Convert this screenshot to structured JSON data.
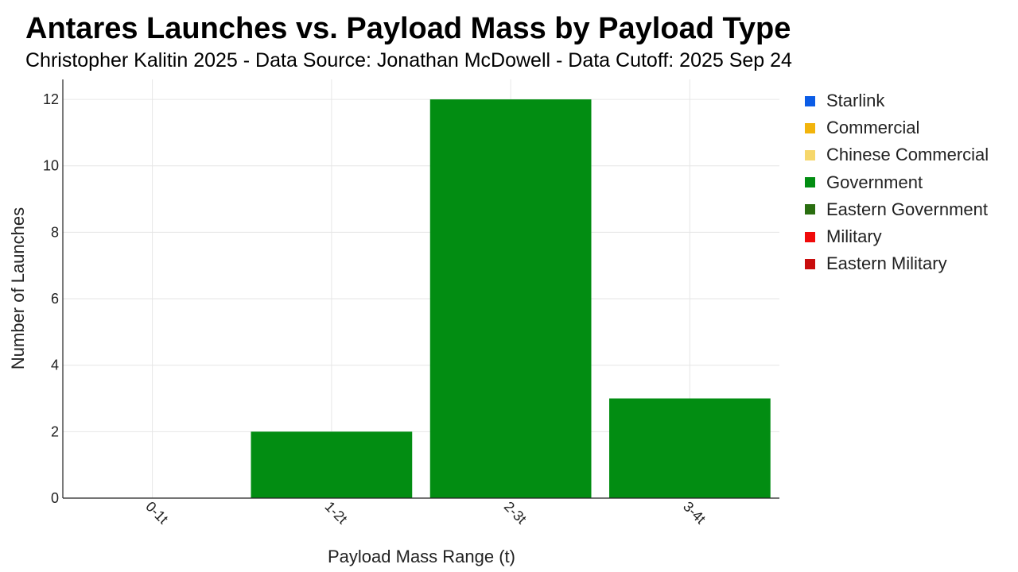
{
  "chart_data": {
    "type": "bar",
    "title": "Antares Launches vs. Payload Mass by Payload Type",
    "subtitle": "Christopher Kalitin 2025 - Data Source: Jonathan McDowell - Data Cutoff: 2025 Sep 24",
    "xlabel": "Payload Mass Range (t)",
    "ylabel": "Number of Launches",
    "categories": [
      "0-1t",
      "1-2t",
      "2-3t",
      "3-4t"
    ],
    "stacked": true,
    "ylim": [
      0,
      12.6
    ],
    "yticks": [
      0,
      2,
      4,
      6,
      8,
      10,
      12
    ],
    "grid": true,
    "legend_position": "right",
    "series": [
      {
        "name": "Starlink",
        "color": "#0b5ce6",
        "values": [
          0,
          0,
          0,
          0
        ]
      },
      {
        "name": "Commercial",
        "color": "#f2b40c",
        "values": [
          0,
          0,
          0,
          0
        ]
      },
      {
        "name": "Chinese Commercial",
        "color": "#f6d76b",
        "values": [
          0,
          0,
          0,
          0
        ]
      },
      {
        "name": "Government",
        "color": "#028d12",
        "values": [
          0,
          2,
          12,
          3
        ]
      },
      {
        "name": "Eastern Government",
        "color": "#2a6e10",
        "values": [
          0,
          0,
          0,
          0
        ]
      },
      {
        "name": "Military",
        "color": "#f00a0a",
        "values": [
          0,
          0,
          0,
          0
        ]
      },
      {
        "name": "Eastern Military",
        "color": "#c90d0d",
        "values": [
          0,
          0,
          0,
          0
        ]
      }
    ]
  }
}
